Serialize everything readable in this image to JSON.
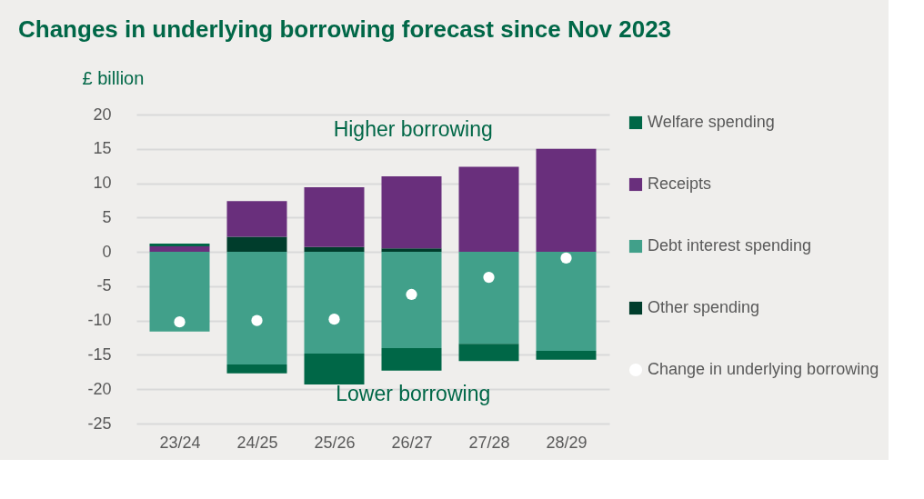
{
  "chart_data": {
    "type": "bar",
    "title": "Changes in underlying borrowing forecast since Nov 2023",
    "ylabel": "£ billion",
    "categories": [
      "23/24",
      "24/25",
      "25/26",
      "26/27",
      "27/28",
      "28/29"
    ],
    "stacked": true,
    "series": [
      {
        "name": "Other spending",
        "color": "#003d2c",
        "values": [
          null,
          2.2,
          0.7,
          0.5,
          null,
          null
        ]
      },
      {
        "name": "Debt interest spending",
        "color": "#41a08a",
        "values": [
          -11.6,
          -16.4,
          -14.8,
          -14.0,
          -13.4,
          -14.4
        ]
      },
      {
        "name": "Receipts",
        "color": "#692f7c",
        "values": [
          0.8,
          5.2,
          8.7,
          10.5,
          12.4,
          15.0
        ]
      },
      {
        "name": "Welfare spending",
        "color": "#006747",
        "values": [
          0.4,
          -1.3,
          -4.5,
          -3.3,
          -2.5,
          -1.3
        ]
      },
      {
        "name": "Change in underlying borrowing",
        "type": "scatter",
        "color": "#ffffff",
        "values": [
          -10.2,
          -10.0,
          -9.8,
          -6.2,
          -3.7,
          -0.9
        ]
      }
    ],
    "ylim": [
      -25,
      20
    ],
    "yticks": [
      -25,
      -20,
      -15,
      -10,
      -5,
      0,
      5,
      10,
      15,
      20
    ],
    "grid": "y",
    "legend": "right",
    "marker": "circle",
    "annotations": [
      "Higher borrowing",
      "Lower borrowing"
    ]
  }
}
